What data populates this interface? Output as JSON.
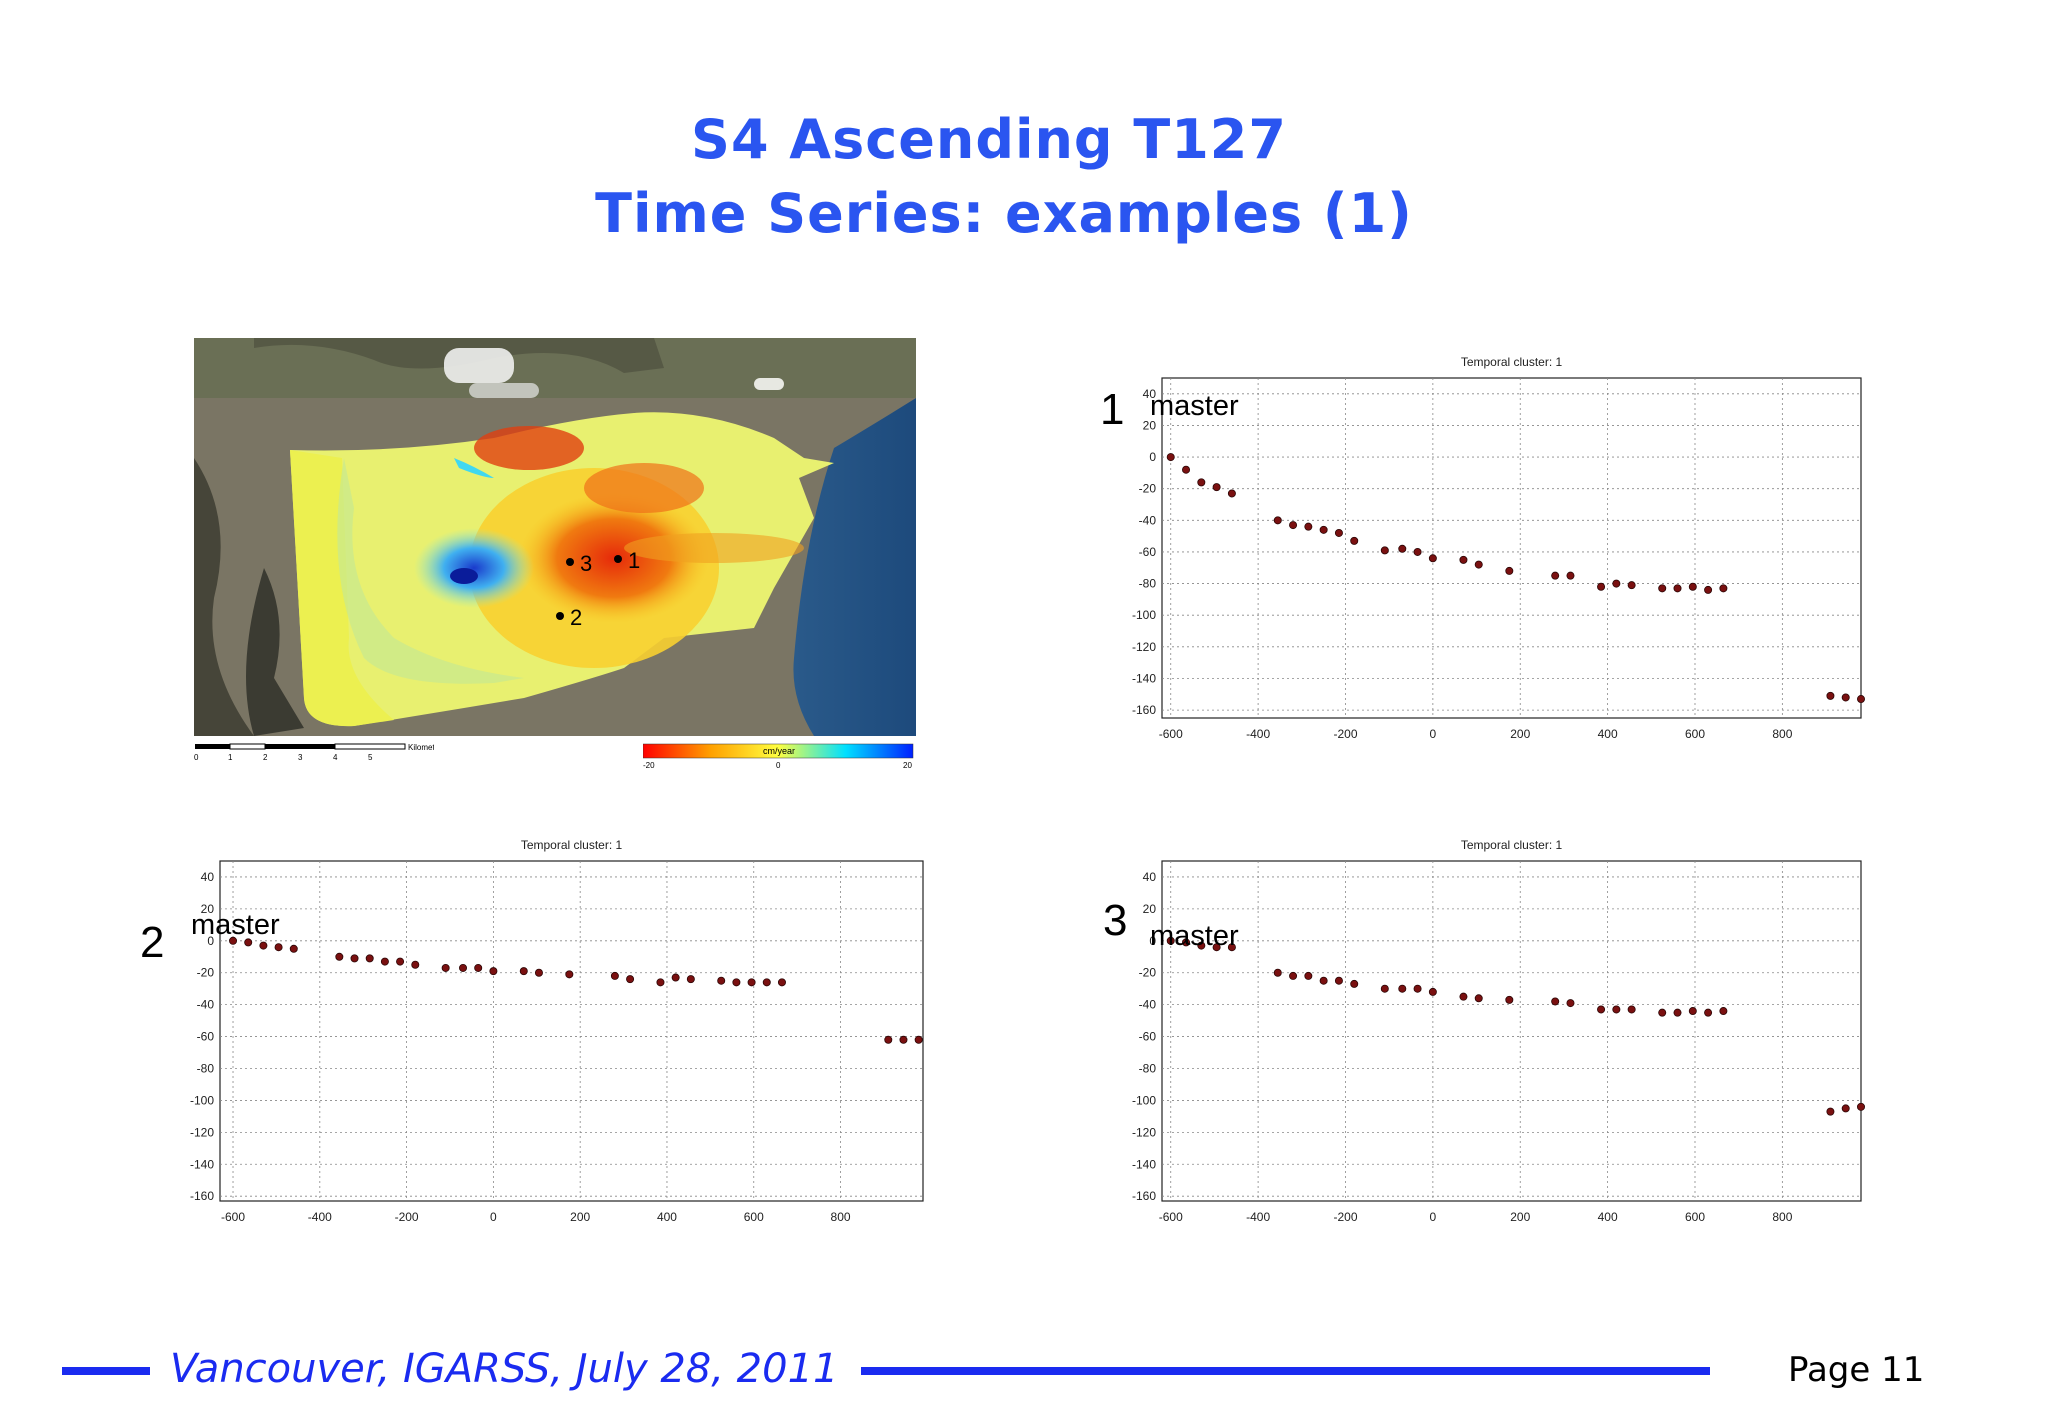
{
  "slide": {
    "title_line1": "S4 Ascending T127",
    "title_line2": "Time Series: examples (1)",
    "footer": "Vancouver, IGARSS, July 28, 2011",
    "page": "Page 11"
  },
  "map": {
    "points": [
      {
        "label": "1"
      },
      {
        "label": "2"
      },
      {
        "label": "3"
      }
    ],
    "scalebar": {
      "unit": "Kilometers",
      "ticks": [
        "0",
        "1",
        "2",
        "3",
        "4",
        "5"
      ]
    },
    "colorbar": {
      "title": "cm/year",
      "ticks": [
        "-20",
        "0",
        "20"
      ],
      "colors": [
        "#ff0000",
        "#ffa000",
        "#ffff40",
        "#00e0ff",
        "#0020ff"
      ]
    }
  },
  "labels": {
    "plot1": {
      "number": "1",
      "master": "master"
    },
    "plot2": {
      "number": "2",
      "master": "master"
    },
    "plot3": {
      "number": "3",
      "master": "master"
    }
  },
  "chart_data": [
    {
      "type": "scatter",
      "title": "Temporal cluster: 1",
      "xlim": [
        -620,
        980
      ],
      "ylim": [
        -165,
        50
      ],
      "xticks": [
        -600,
        -400,
        -200,
        0,
        200,
        400,
        600,
        800
      ],
      "yticks": [
        40,
        20,
        0,
        -20,
        -40,
        -60,
        -80,
        -100,
        -120,
        -140,
        -160
      ],
      "grid": true,
      "marker_color": "#7a1010",
      "series": [
        {
          "x": [
            -600,
            -565,
            -530,
            -495,
            -460,
            -355,
            -320,
            -285,
            -250,
            -215,
            -180,
            -110,
            -70,
            -35,
            0,
            70,
            105,
            175,
            280,
            315,
            385,
            420,
            455,
            525,
            560,
            595,
            630,
            665,
            910,
            945,
            980
          ],
          "y": [
            0,
            -8,
            -16,
            -19,
            -23,
            -40,
            -43,
            -44,
            -46,
            -48,
            -53,
            -59,
            -58,
            -60,
            -64,
            -65,
            -68,
            -72,
            -75,
            -75,
            -82,
            -80,
            -81,
            -83,
            -83,
            -82,
            -84,
            -83,
            -151,
            -152,
            -153
          ]
        }
      ]
    },
    {
      "type": "scatter",
      "title": "Temporal cluster: 1",
      "xlim": [
        -630,
        990
      ],
      "ylim": [
        -163,
        50
      ],
      "xticks": [
        -600,
        -400,
        -200,
        0,
        200,
        400,
        600,
        800
      ],
      "yticks": [
        40,
        20,
        0,
        -20,
        -40,
        -60,
        -80,
        -100,
        -120,
        -140,
        -160
      ],
      "grid": true,
      "marker_color": "#7a1010",
      "series": [
        {
          "x": [
            -600,
            -565,
            -530,
            -495,
            -460,
            -355,
            -320,
            -285,
            -250,
            -215,
            -180,
            -110,
            -70,
            -35,
            0,
            70,
            105,
            175,
            280,
            315,
            385,
            420,
            455,
            525,
            560,
            595,
            630,
            665,
            910,
            945,
            980
          ],
          "y": [
            0,
            -1,
            -3,
            -4,
            -5,
            -10,
            -11,
            -11,
            -13,
            -13,
            -15,
            -17,
            -17,
            -17,
            -19,
            -19,
            -20,
            -21,
            -22,
            -24,
            -26,
            -23,
            -24,
            -25,
            -26,
            -26,
            -26,
            -26,
            -62,
            -62,
            -62
          ]
        }
      ]
    },
    {
      "type": "scatter",
      "title": "Temporal cluster: 1",
      "xlim": [
        -620,
        980
      ],
      "ylim": [
        -163,
        50
      ],
      "xticks": [
        -600,
        -400,
        -200,
        0,
        200,
        400,
        600,
        800
      ],
      "yticks": [
        40,
        20,
        0,
        -20,
        -40,
        -60,
        -80,
        -100,
        -120,
        -140,
        -160
      ],
      "grid": true,
      "marker_color": "#7a1010",
      "series": [
        {
          "x": [
            -600,
            -565,
            -530,
            -495,
            -460,
            -355,
            -320,
            -285,
            -250,
            -215,
            -180,
            -110,
            -70,
            -35,
            0,
            70,
            105,
            175,
            280,
            315,
            385,
            420,
            455,
            525,
            560,
            595,
            630,
            665,
            910,
            945,
            980
          ],
          "y": [
            0,
            -1,
            -3,
            -4,
            -4,
            -20,
            -22,
            -22,
            -25,
            -25,
            -27,
            -30,
            -30,
            -30,
            -32,
            -35,
            -36,
            -37,
            -38,
            -39,
            -43,
            -43,
            -43,
            -45,
            -45,
            -44,
            -45,
            -44,
            -107,
            -105,
            -104
          ]
        }
      ]
    }
  ]
}
